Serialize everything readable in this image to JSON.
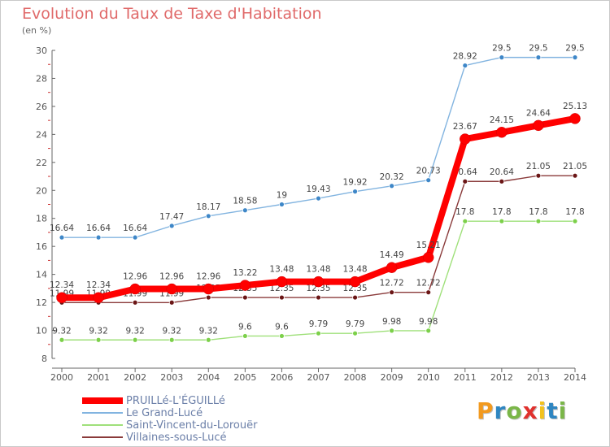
{
  "title": "Evolution du Taux de Taxe d'Habitation",
  "subtitle": "(en %)",
  "logo": {
    "text": "Proxiti",
    "colors": [
      "#f29a1f",
      "#2e86c1",
      "#7ab648",
      "#e0312d",
      "#f2c21f",
      "#2e86c1",
      "#7ab648"
    ]
  },
  "chart_data": {
    "type": "line",
    "title": "Evolution du Taux de Taxe d'Habitation",
    "ylabel": "(en %)",
    "xlabel": "",
    "x": [
      "2000",
      "2001",
      "2002",
      "2003",
      "2004",
      "2005",
      "2006",
      "2007",
      "2008",
      "2009",
      "2010",
      "2011",
      "2012",
      "2013",
      "2014"
    ],
    "ylim": [
      8,
      30
    ],
    "yticks": [
      "8",
      "10",
      "12",
      "14",
      "16",
      "18",
      "20",
      "22",
      "24",
      "26",
      "28",
      "30"
    ],
    "grid": false,
    "legend_position": "bottom-left",
    "series": [
      {
        "name": "PRUILLé-L'ÉGUILLé",
        "color": "#ff0000",
        "marker_color": "#ff0000",
        "values": [
          12.34,
          12.34,
          12.96,
          12.96,
          12.96,
          13.22,
          13.48,
          13.48,
          13.48,
          14.49,
          15.21,
          23.67,
          24.15,
          24.64,
          25.13
        ],
        "labels": [
          "12.34",
          "12.34",
          "12.96",
          "12.96",
          "12.96",
          "13.22",
          "13.48",
          "13.48",
          "13.48",
          "14.49",
          "15.21",
          "23.67",
          "24.15",
          "24.64",
          "25.13"
        ]
      },
      {
        "name": "Le Grand-Lucé",
        "color": "#82b4e0",
        "marker_color": "#3e87c8",
        "values": [
          16.64,
          16.64,
          16.64,
          17.47,
          18.17,
          18.58,
          19,
          19.43,
          19.92,
          20.32,
          20.73,
          28.92,
          29.5,
          29.5,
          29.5
        ],
        "labels": [
          "16.64",
          "16.64",
          "16.64",
          "17.47",
          "18.17",
          "18.58",
          "19",
          "19.43",
          "19.92",
          "20.32",
          "20.73",
          "28.92",
          "29.5",
          "29.5",
          "29.5"
        ]
      },
      {
        "name": "Saint-Vincent-du-Lorouër",
        "color": "#9fe07a",
        "marker_color": "#7cd04a",
        "values": [
          9.32,
          9.32,
          9.32,
          9.32,
          9.32,
          9.6,
          9.6,
          9.79,
          9.79,
          9.98,
          9.98,
          17.8,
          17.8,
          17.8,
          17.8
        ],
        "labels": [
          "9.32",
          "9.32",
          "9.32",
          "9.32",
          "9.32",
          "9.6",
          "9.6",
          "9.79",
          "9.79",
          "9.98",
          "9.98",
          "17.8",
          "17.8",
          "17.8",
          "17.8"
        ]
      },
      {
        "name": "Villaines-sous-Lucé",
        "color": "#8a3a3a",
        "marker_color": "#6b1616",
        "values": [
          11.99,
          11.99,
          11.99,
          11.99,
          12.35,
          12.35,
          12.35,
          12.35,
          12.35,
          12.72,
          12.72,
          20.64,
          20.64,
          21.05,
          21.05
        ],
        "labels": [
          "11.99",
          "11.99",
          "11.99",
          "11.99",
          "12.35",
          "12.35",
          "12.35",
          "12.35",
          "12.35",
          "12.72",
          "12.72",
          "20.64",
          "20.64",
          "21.05",
          "21.05"
        ]
      }
    ]
  }
}
